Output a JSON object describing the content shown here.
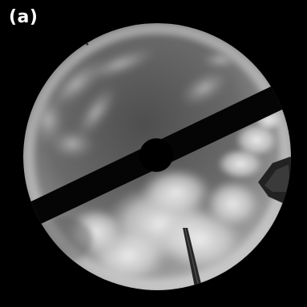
{
  "panel": {
    "label": "(a)"
  },
  "image": {
    "subject": "all-sky-camera-fisheye",
    "colors": {
      "background": "#000000",
      "sky_dark": "#5a5a5a",
      "cloud_bright": "#e8e8e8",
      "shadow_band": "#050505"
    }
  }
}
